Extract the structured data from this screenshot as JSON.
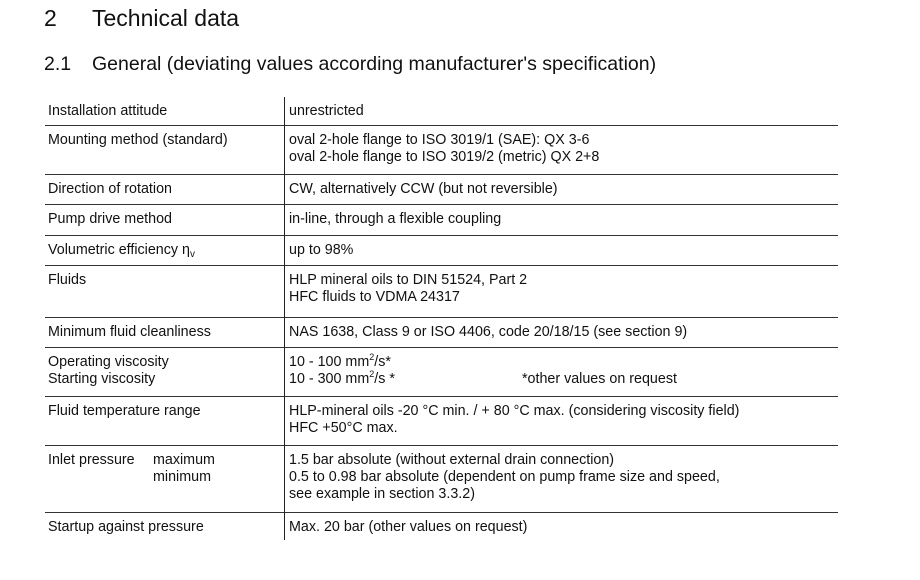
{
  "heading1": {
    "number": "2",
    "title": "Technical data"
  },
  "heading2": {
    "number": "2.1",
    "title": "General (deviating values according manufacturer's specification)"
  },
  "rows": [
    {
      "label": "Installation attitude",
      "value": [
        "unrestricted"
      ]
    },
    {
      "label": "Mounting method (standard)",
      "value": [
        "oval 2-hole flange to ISO 3019/1 (SAE): QX 3-6",
        "oval 2-hole flange to ISO 3019/2 (metric) QX 2+8"
      ]
    },
    {
      "label": "Direction of rotation",
      "value": [
        "CW, alternatively CCW (but not reversible)"
      ]
    },
    {
      "label": "Pump drive method",
      "value": [
        "in-line, through a flexible coupling"
      ]
    },
    {
      "label": "Volumetric efficiency η",
      "label_sub": "v",
      "value": [
        "up to 98%"
      ]
    },
    {
      "label": "Fluids",
      "value": [
        "HLP mineral oils to  DIN 51524, Part 2",
        "HFC fluids to VDMA 24317"
      ]
    },
    {
      "label": "Minimum fluid cleanliness",
      "value": [
        "NAS 1638, Class 9 or ISO 4406, code 20/18/15 (see section 9)"
      ]
    },
    {
      "labels": [
        "Operating viscosity",
        "Starting viscosity"
      ],
      "value_parts": [
        [
          "10 - 100 mm",
          "2",
          "/s*"
        ],
        [
          "10 - 300 mm",
          "2",
          "/s *"
        ]
      ],
      "note": "*other values on request"
    },
    {
      "label": "Fluid temperature range",
      "value": [
        "HLP-mineral oils -20 °C min. / + 80 °C max.  (considering viscosity field)",
        "HFC +50°C max."
      ]
    },
    {
      "label": "Inlet pressure",
      "sublabels": [
        "maximum",
        "minimum"
      ],
      "value": [
        "1.5 bar absolute (without external drain connection)",
        "0.5 to 0.98 bar absolute (dependent on pump frame size and speed,",
        "see example in section 3.3.2)"
      ]
    },
    {
      "label": "Startup against pressure",
      "value": [
        "Max. 20 bar (other values on request)"
      ]
    }
  ]
}
